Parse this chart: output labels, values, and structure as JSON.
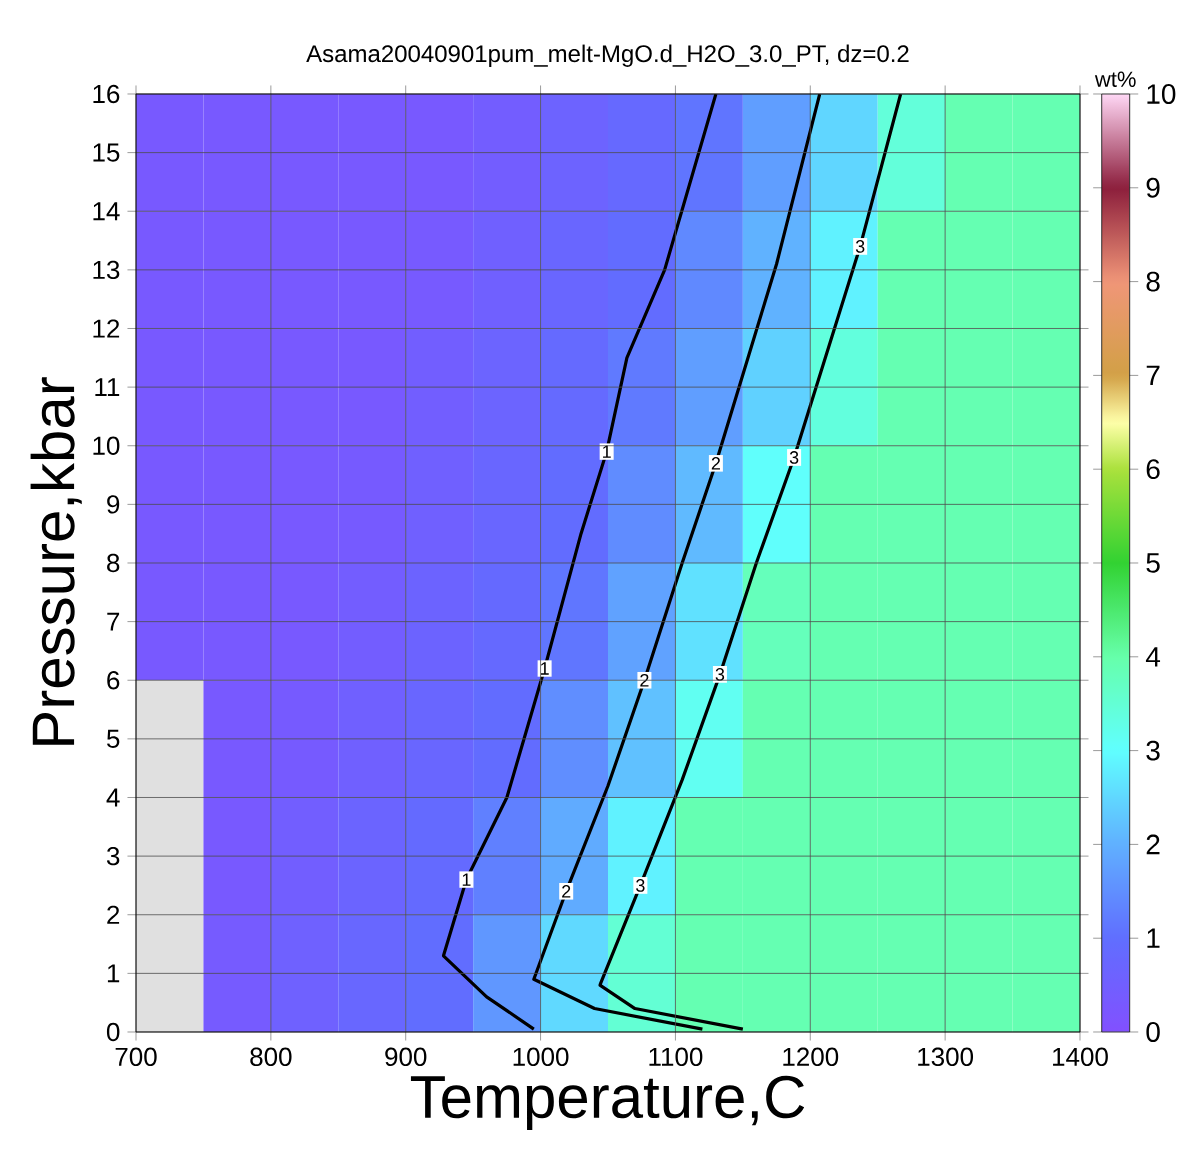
{
  "chart_data": {
    "type": "heatmap",
    "title": "Asama20040901pum_melt-MgO.d_H2O_3.0_PT, dz=0.2",
    "xlabel": "Temperature,C",
    "ylabel": "Pressure,kbar",
    "clabel": "wt%",
    "xlim": [
      700,
      1400
    ],
    "xticks": [
      700,
      800,
      900,
      1000,
      1100,
      1200,
      1300,
      1400
    ],
    "ylim": [
      0,
      16
    ],
    "yticks": [
      0,
      1,
      2,
      3,
      4,
      5,
      6,
      7,
      8,
      9,
      10,
      11,
      12,
      13,
      14,
      15,
      16
    ],
    "clim": [
      0,
      10
    ],
    "cticks": [
      0,
      1,
      2,
      3,
      4,
      5,
      6,
      7,
      8,
      9,
      10
    ],
    "grid": true,
    "cells": [
      [
        0.3,
        0.3,
        0.3,
        0.3,
        0.3,
        0.43,
        0.63,
        0.83,
        1.1,
        1.73,
        2.48,
        3.44,
        3.9,
        3.9
      ],
      [
        0.3,
        0.3,
        0.3,
        0.3,
        0.33,
        0.53,
        0.73,
        0.93,
        1.41,
        2.03,
        2.84,
        3.9,
        3.9,
        3.9
      ],
      [
        0.3,
        0.3,
        0.3,
        0.3,
        0.46,
        0.66,
        0.86,
        1.18,
        1.73,
        2.42,
        3.4,
        3.9,
        3.9,
        3.9
      ],
      [
        0.3,
        0.3,
        0.3,
        0.34,
        0.54,
        0.74,
        0.94,
        1.45,
        2.13,
        3.03,
        3.9,
        3.9,
        3.9,
        3.9
      ],
      [
        0.3,
        0.3,
        0.3,
        0.44,
        0.64,
        0.84,
        1.12,
        1.79,
        2.62,
        3.8,
        3.9,
        3.9,
        3.9,
        3.9
      ],
      [
        null,
        0.3,
        0.34,
        0.54,
        0.74,
        0.94,
        1.48,
        2.21,
        3.15,
        3.9,
        3.9,
        3.9,
        3.9,
        3.9
      ],
      [
        null,
        0.3,
        0.48,
        0.68,
        0.88,
        1.27,
        1.93,
        2.83,
        3.9,
        3.9,
        3.9,
        3.9,
        3.9,
        3.9
      ],
      [
        null,
        0.36,
        0.56,
        0.76,
        0.96,
        1.62,
        2.52,
        3.51,
        3.9,
        3.9,
        3.9,
        3.9,
        3.9,
        3.9
      ]
    ],
    "series": [
      {
        "type": "line",
        "color": "#000000",
        "x": [
          995,
          960,
          928,
          945,
          975,
          1003,
          1030,
          1049,
          1064,
          1092,
          1130
        ],
        "values": [
          0.05,
          0.6,
          1.3,
          2.6,
          4,
          6.2,
          8.5,
          9.9,
          11.5,
          13,
          16
        ]
      },
      {
        "type": "line",
        "color": "#000000",
        "x": [
          1120,
          1040,
          995,
          1019,
          1050,
          1077,
          1105,
          1130,
          1175,
          1207
        ],
        "values": [
          0.05,
          0.4,
          0.9,
          2.4,
          4.2,
          6,
          8,
          9.7,
          13.1,
          16
        ]
      },
      {
        "type": "line",
        "color": "#000000",
        "x": [
          1150,
          1070,
          1044,
          1074,
          1105,
          1133,
          1160,
          1188,
          1237,
          1267
        ],
        "values": [
          0.05,
          0.4,
          0.8,
          2.5,
          4.3,
          6.1,
          8,
          9.8,
          13.4,
          16
        ]
      }
    ],
    "annotations": [
      {
        "text": "1",
        "x": 945,
        "y": 2.6
      },
      {
        "text": "1",
        "x": 1003,
        "y": 6.2
      },
      {
        "text": "1",
        "x": 1049,
        "y": 9.9
      },
      {
        "text": "2",
        "x": 1019,
        "y": 2.4
      },
      {
        "text": "2",
        "x": 1077,
        "y": 6.0
      },
      {
        "text": "2",
        "x": 1130,
        "y": 9.7
      },
      {
        "text": "3",
        "x": 1074,
        "y": 2.5
      },
      {
        "text": "3",
        "x": 1133,
        "y": 6.1
      },
      {
        "text": "3",
        "x": 1188,
        "y": 9.8
      },
      {
        "text": "3",
        "x": 1237,
        "y": 13.4
      }
    ]
  }
}
